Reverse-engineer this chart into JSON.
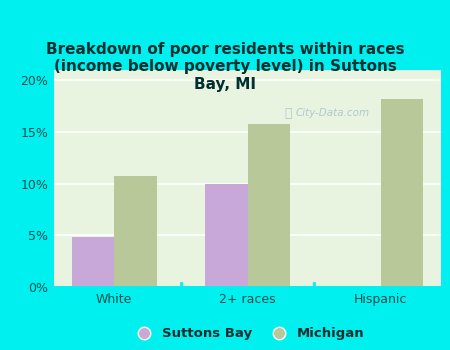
{
  "title": "Breakdown of poor residents within races\n(income below poverty level) in Suttons\nBay, MI",
  "categories": [
    "White",
    "2+ races",
    "Hispanic"
  ],
  "suttons_bay_values": [
    4.8,
    10.0,
    0
  ],
  "michigan_values": [
    10.7,
    15.8,
    18.2
  ],
  "suttons_bay_color": "#c8a8d8",
  "michigan_color": "#b8c898",
  "background_color": "#00f0f0",
  "plot_bg_top": "#f0f8f0",
  "plot_bg_bottom": "#d8eed8",
  "ylim": [
    0,
    21
  ],
  "yticks": [
    0,
    5,
    10,
    15,
    20
  ],
  "ytick_labels": [
    "0%",
    "5%",
    "10%",
    "15%",
    "20%"
  ],
  "bar_width": 0.32,
  "legend_labels": [
    "Suttons Bay",
    "Michigan"
  ],
  "watermark": "City-Data.com",
  "title_color": "#003030",
  "axis_label_color": "#005050"
}
